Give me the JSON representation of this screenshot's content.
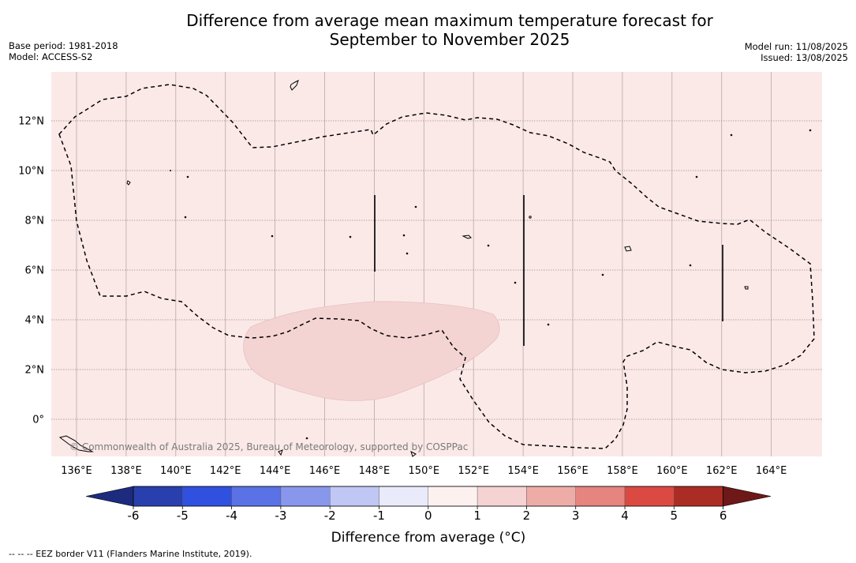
{
  "title": {
    "line1": "Difference from average mean maximum temperature forecast for",
    "line2": "September to November 2025"
  },
  "meta_left": {
    "base_period": "Base period: 1981-2018",
    "model": "Model: ACCESS-S2"
  },
  "meta_right": {
    "model_run": "Model run: 11/08/2025",
    "issued": "Issued: 13/08/2025"
  },
  "map": {
    "background_color": "#fbe9e8",
    "anomaly_color": "#f3d4d3",
    "lon_labels": [
      "136°E",
      "138°E",
      "140°E",
      "142°E",
      "144°E",
      "146°E",
      "148°E",
      "150°E",
      "152°E",
      "154°E",
      "156°E",
      "158°E",
      "160°E",
      "162°E",
      "164°E"
    ],
    "lat_labels": [
      "12°N",
      "10°N",
      "8°N",
      "6°N",
      "4°N",
      "2°N",
      "0°"
    ],
    "copyright": "© Commonwealth of Australia 2025, Bureau of Meteorology, supported by COSPPac"
  },
  "colorbar": {
    "title": "Difference from average (°C)",
    "ticks": [
      "-6",
      "-5",
      "-4",
      "-3",
      "-2",
      "-1",
      "0",
      "1",
      "2",
      "3",
      "4",
      "5",
      "6"
    ],
    "colors": [
      "#2a3fae",
      "#3050df",
      "#5a72e6",
      "#8897ec",
      "#c0c7f4",
      "#e9ebfb",
      "#fdf1f0",
      "#f5d3d2",
      "#eeaca7",
      "#e6847f",
      "#da4a42",
      "#ab2c24"
    ],
    "under_color": "#1d2b7e",
    "over_color": "#6e1818"
  },
  "footer": "--  --  -- EEZ border V11 (Flanders Marine Institute, 2019)."
}
